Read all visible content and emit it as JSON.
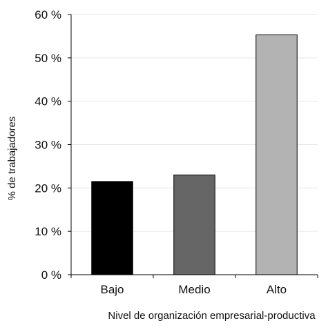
{
  "chart_data": {
    "type": "bar",
    "categories": [
      "Bajo",
      "Medio",
      "Alto"
    ],
    "values": [
      21.5,
      23.0,
      55.3
    ],
    "colors": [
      "#000000",
      "#666666",
      "#b3b3b3"
    ],
    "xlabel": "Nivel de organización empresarial-productiva",
    "ylabel": "% de trabajadores",
    "ylim": [
      0,
      60
    ],
    "yticks": [
      0,
      10,
      20,
      30,
      40,
      50,
      60
    ],
    "ytick_labels": [
      "0 %",
      "10 %",
      "20 %",
      "30 %",
      "40 %",
      "50 %",
      "60 %"
    ],
    "grid": true,
    "legend": "none"
  }
}
